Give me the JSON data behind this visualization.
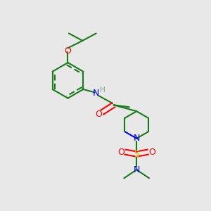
{
  "bg_color": "#e8e8e8",
  "atom_colors": {
    "C": "#1a7a1a",
    "N": "#0000ff",
    "O": "#ff0000",
    "S": "#cccc00",
    "H": "#7a9a9a"
  },
  "bond_color": "#1a7a1a",
  "figsize": [
    3.0,
    3.0
  ],
  "dpi": 100
}
